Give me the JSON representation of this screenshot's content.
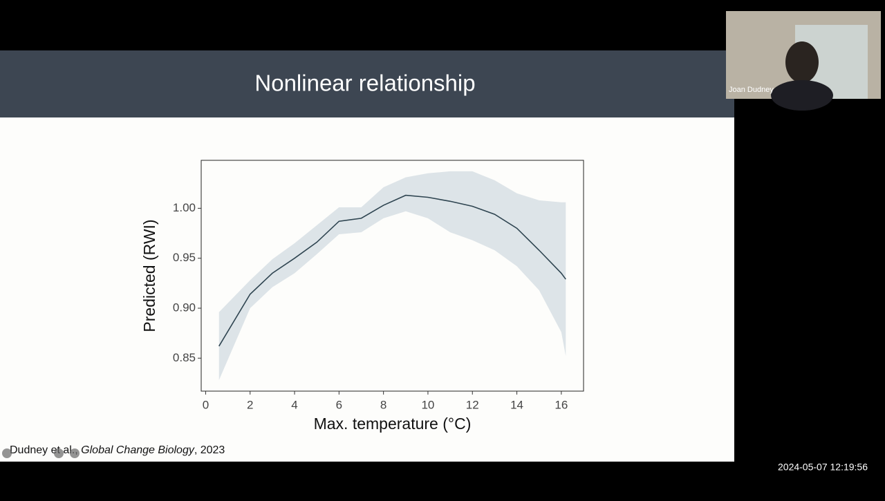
{
  "slide": {
    "title": "Nonlinear relationship",
    "citation": [
      "Dudney et al., ",
      "Global Change Biology",
      ", 2023"
    ]
  },
  "participant": {
    "name": "Joan Dudney"
  },
  "timestamp": "2024-05-07 12:19:56",
  "chart_data": {
    "type": "line",
    "x_label": "Max. temperature (°C)",
    "y_label": "Predicted (RWI)",
    "x": [
      0.6,
      2,
      3,
      4,
      5,
      6,
      7,
      8,
      9,
      10,
      11,
      12,
      13,
      14,
      15,
      16,
      16.2
    ],
    "values": [
      0.862,
      0.914,
      0.935,
      0.95,
      0.966,
      0.987,
      0.99,
      1.003,
      1.013,
      1.011,
      1.007,
      1.002,
      0.994,
      0.98,
      0.958,
      0.935,
      0.929
    ],
    "upper": [
      0.896,
      0.928,
      0.949,
      0.965,
      0.983,
      1.001,
      1.001,
      1.021,
      1.031,
      1.035,
      1.037,
      1.037,
      1.028,
      1.015,
      1.008,
      1.006,
      1.006
    ],
    "lower": [
      0.828,
      0.9,
      0.921,
      0.935,
      0.954,
      0.974,
      0.976,
      0.99,
      0.997,
      0.99,
      0.976,
      0.968,
      0.958,
      0.942,
      0.918,
      0.876,
      0.852
    ],
    "color": "#2e4450",
    "band_color": "#dde4e8",
    "xlim": [
      -0.2,
      17.0
    ],
    "ylim": [
      0.817,
      1.048
    ],
    "xticks": [
      0,
      2,
      4,
      6,
      8,
      10,
      12,
      14,
      16
    ],
    "yticks": [
      0.85,
      {
        "value": 0.9,
        "label": "0.90"
      },
      0.95,
      {
        "value": 1,
        "label": "1.00"
      }
    ]
  }
}
